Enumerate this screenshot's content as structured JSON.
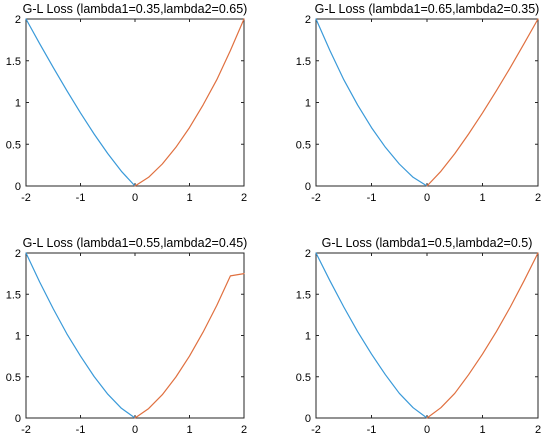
{
  "chart_data": [
    {
      "type": "line",
      "title": "G-L Loss (lambda1=0.35,lambda2=0.65)",
      "xlim": [
        -2,
        2
      ],
      "ylim": [
        0,
        2
      ],
      "xticks": [
        -2,
        -1,
        0,
        1,
        2
      ],
      "yticks": [
        0,
        0.5,
        1,
        1.5,
        2
      ],
      "xtick_labels": [
        "-2",
        "-1",
        "0",
        "1",
        "2"
      ],
      "ytick_labels": [
        "0",
        "0.5",
        "1",
        "1.5",
        "2"
      ],
      "lambda1": 0.35,
      "lambda2": 0.65,
      "series": [
        {
          "color": "#3a9ad9",
          "x": [
            -2.0,
            -1.75,
            -1.5,
            -1.25,
            -1.0,
            -0.75,
            -0.5,
            -0.25,
            0.0
          ],
          "y": [
            2.0,
            1.705,
            1.418,
            1.141,
            0.875,
            0.623,
            0.388,
            0.176,
            0.0
          ]
        },
        {
          "color": "#e07040",
          "x": [
            0.0,
            0.25,
            0.5,
            0.75,
            1.0,
            1.25,
            1.5,
            1.75,
            2.0
          ],
          "y": [
            0.0,
            0.104,
            0.263,
            0.463,
            0.7,
            0.971,
            1.273,
            1.623,
            2.0
          ]
        }
      ]
    },
    {
      "type": "line",
      "title": "G-L Loss (lambda1=0.65,lambda2=0.35)",
      "xlim": [
        -2,
        2
      ],
      "ylim": [
        0,
        2
      ],
      "xticks": [
        -2,
        -1,
        0,
        1,
        2
      ],
      "yticks": [
        0,
        0.5,
        1,
        1.5,
        2
      ],
      "xtick_labels": [
        "-2",
        "-1",
        "0",
        "1",
        "2"
      ],
      "ytick_labels": [
        "0",
        "0.5",
        "1",
        "1.5",
        "2"
      ],
      "lambda1": 0.65,
      "lambda2": 0.35,
      "series": [
        {
          "color": "#3a9ad9",
          "x": [
            -2.0,
            -1.75,
            -1.5,
            -1.25,
            -1.0,
            -0.75,
            -0.5,
            -0.25,
            0.0
          ],
          "y": [
            2.0,
            1.623,
            1.273,
            0.971,
            0.7,
            0.463,
            0.263,
            0.104,
            0.0
          ]
        },
        {
          "color": "#e07040",
          "x": [
            0.0,
            0.25,
            0.5,
            0.75,
            1.0,
            1.25,
            1.5,
            1.75,
            2.0
          ],
          "y": [
            0.0,
            0.176,
            0.388,
            0.623,
            0.875,
            1.141,
            1.418,
            1.705,
            2.0
          ]
        }
      ]
    },
    {
      "type": "line",
      "title": "G-L Loss (lambda1=0.55,lambda2=0.45)",
      "xlim": [
        -2,
        2
      ],
      "ylim": [
        0,
        2
      ],
      "xticks": [
        -2,
        -1,
        0,
        1,
        2
      ],
      "yticks": [
        0,
        0.5,
        1,
        1.5,
        2
      ],
      "xtick_labels": [
        "-2",
        "-1",
        "0",
        "1",
        "2"
      ],
      "ytick_labels": [
        "0",
        "0.5",
        "1",
        "1.5",
        "2"
      ],
      "lambda1": 0.55,
      "lambda2": 0.45,
      "series": [
        {
          "color": "#3a9ad9",
          "x": [
            -2.0,
            -1.75,
            -1.5,
            -1.25,
            -1.0,
            -0.75,
            -0.5,
            -0.25,
            0.0
          ],
          "y": [
            2.0,
            1.65,
            1.322,
            1.02,
            0.75,
            0.503,
            0.288,
            0.117,
            0.0
          ]
        },
        {
          "color": "#e07040",
          "x": [
            0.0,
            0.25,
            0.5,
            0.75,
            1.0,
            1.25,
            1.5,
            1.75,
            2.0
          ],
          "y": [
            0.0,
            0.114,
            0.283,
            0.497,
            0.75,
            1.041,
            1.365,
            1.722,
            1.75
          ]
        }
      ]
    },
    {
      "type": "line",
      "title": "G-L Loss (lambda1=0.5,lambda2=0.5)",
      "xlim": [
        -2,
        2
      ],
      "ylim": [
        0,
        2
      ],
      "xticks": [
        -2,
        -1,
        0,
        1,
        2
      ],
      "yticks": [
        0,
        0.5,
        1,
        1.5,
        2
      ],
      "xtick_labels": [
        "-2",
        "-1",
        "0",
        "1",
        "2"
      ],
      "ytick_labels": [
        "0",
        "0.5",
        "1",
        "1.5",
        "2"
      ],
      "lambda1": 0.5,
      "lambda2": 0.5,
      "series": [
        {
          "color": "#3a9ad9",
          "x": [
            -2.0,
            -1.75,
            -1.5,
            -1.25,
            -1.0,
            -0.75,
            -0.5,
            -0.25,
            0.0
          ],
          "y": [
            2.0,
            1.664,
            1.345,
            1.047,
            0.775,
            0.525,
            0.3,
            0.125,
            0.0
          ]
        },
        {
          "color": "#e07040",
          "x": [
            0.0,
            0.25,
            0.5,
            0.75,
            1.0,
            1.25,
            1.5,
            1.75,
            2.0
          ],
          "y": [
            0.0,
            0.125,
            0.3,
            0.525,
            0.775,
            1.047,
            1.345,
            1.664,
            2.0
          ]
        }
      ]
    }
  ]
}
